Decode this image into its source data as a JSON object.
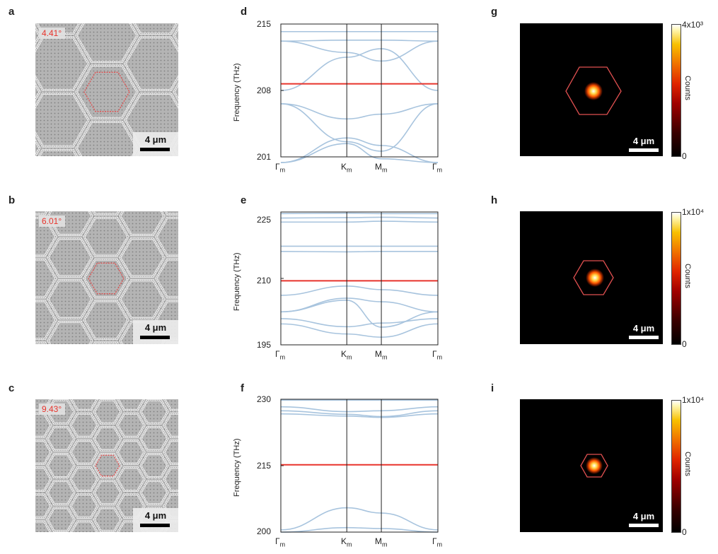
{
  "panel_letters": [
    "a",
    "b",
    "c",
    "d",
    "e",
    "f",
    "g",
    "h",
    "i"
  ],
  "sem_panels": [
    {
      "angle": "4.41°",
      "scalebar": "4 μm"
    },
    {
      "angle": "6.01°",
      "scalebar": "4 μm"
    },
    {
      "angle": "9.43°",
      "scalebar": "4 μm"
    }
  ],
  "pl_panels": [
    {
      "scalebar": "4 μm",
      "cb_max": "4x10³",
      "cb_min": "0",
      "cb_title": "Counts"
    },
    {
      "scalebar": "4 μm",
      "cb_max": "1x10⁴",
      "cb_min": "0",
      "cb_title": "Counts"
    },
    {
      "scalebar": "4 μm",
      "cb_max": "1x10⁴",
      "cb_min": "0",
      "cb_title": "Counts"
    }
  ],
  "colors": {
    "band_blue": "#a8c4de",
    "flat_band": "#e8342c",
    "outline_red": "#e05050"
  },
  "chart_data": [
    {
      "type": "line",
      "ylabel": "Frequency (THz)",
      "ylim": [
        201,
        215
      ],
      "yticks": [
        "201",
        "208",
        "215"
      ],
      "x": [
        "Γm",
        "Km",
        "Mm",
        "Γm"
      ],
      "kpath_fraction": [
        0,
        0.42,
        0.64,
        1
      ],
      "flat_band": 208.7,
      "series": [
        {
          "values": [
            214.2,
            214.2,
            214.2,
            214.2
          ]
        },
        {
          "values": [
            213.2,
            213.3,
            213.3,
            213.2
          ]
        },
        {
          "values": [
            213.2,
            212.0,
            211.1,
            213.2
          ]
        },
        {
          "values": [
            208.0,
            211.5,
            212.4,
            208.0
          ]
        },
        {
          "values": [
            206.6,
            205.0,
            205.5,
            206.6
          ]
        },
        {
          "values": [
            206.6,
            202.6,
            201.6,
            206.6
          ]
        },
        {
          "values": [
            200.4,
            203.0,
            202.2,
            200.4
          ]
        },
        {
          "values": [
            200.4,
            202.4,
            200.8,
            200.4
          ]
        }
      ]
    },
    {
      "type": "line",
      "ylabel": "Frequency (THz)",
      "ylim": [
        195,
        228
      ],
      "yticks": [
        "195",
        "210",
        "225"
      ],
      "x": [
        "Γm",
        "Km",
        "Mm",
        "Γm"
      ],
      "kpath_fraction": [
        0,
        0.42,
        0.64,
        1
      ],
      "flat_band": 210.9,
      "series": [
        {
          "values": [
            227.6,
            227.7,
            227.6,
            227.6
          ]
        },
        {
          "values": [
            226.5,
            226.6,
            226.7,
            226.5
          ]
        },
        {
          "values": [
            225.5,
            225.5,
            225.7,
            225.5
          ]
        },
        {
          "values": [
            219.5,
            219.5,
            219.5,
            219.5
          ]
        },
        {
          "values": [
            218.2,
            218.1,
            218.2,
            218.2
          ]
        },
        {
          "values": [
            207.3,
            209.6,
            208.7,
            207.3
          ]
        },
        {
          "values": [
            203.2,
            206.6,
            205.7,
            203.2
          ]
        },
        {
          "values": [
            203.2,
            206.1,
            199.4,
            203.2
          ]
        },
        {
          "values": [
            201.5,
            199.5,
            200.4,
            201.5
          ]
        },
        {
          "values": [
            200.2,
            197.7,
            196.9,
            200.2
          ]
        }
      ]
    },
    {
      "type": "line",
      "ylabel": "Frequency (THz)",
      "ylim": [
        200,
        230
      ],
      "yticks": [
        "200",
        "215",
        "230"
      ],
      "x": [
        "Γm",
        "Km",
        "Mm",
        "Γm"
      ],
      "kpath_fraction": [
        0,
        0.42,
        0.64,
        1
      ],
      "flat_band": 215.2,
      "series": [
        {
          "values": [
            229.8,
            229.8,
            229.8,
            229.8
          ]
        },
        {
          "values": [
            228.3,
            227.2,
            227.4,
            228.3
          ]
        },
        {
          "values": [
            227.4,
            226.6,
            226.1,
            227.4
          ]
        },
        {
          "values": [
            226.7,
            226.2,
            225.9,
            226.7
          ]
        },
        {
          "values": [
            200.5,
            205.5,
            204.3,
            200.5
          ]
        },
        {
          "values": [
            200.0,
            201.0,
            200.8,
            200.0
          ]
        }
      ]
    }
  ]
}
